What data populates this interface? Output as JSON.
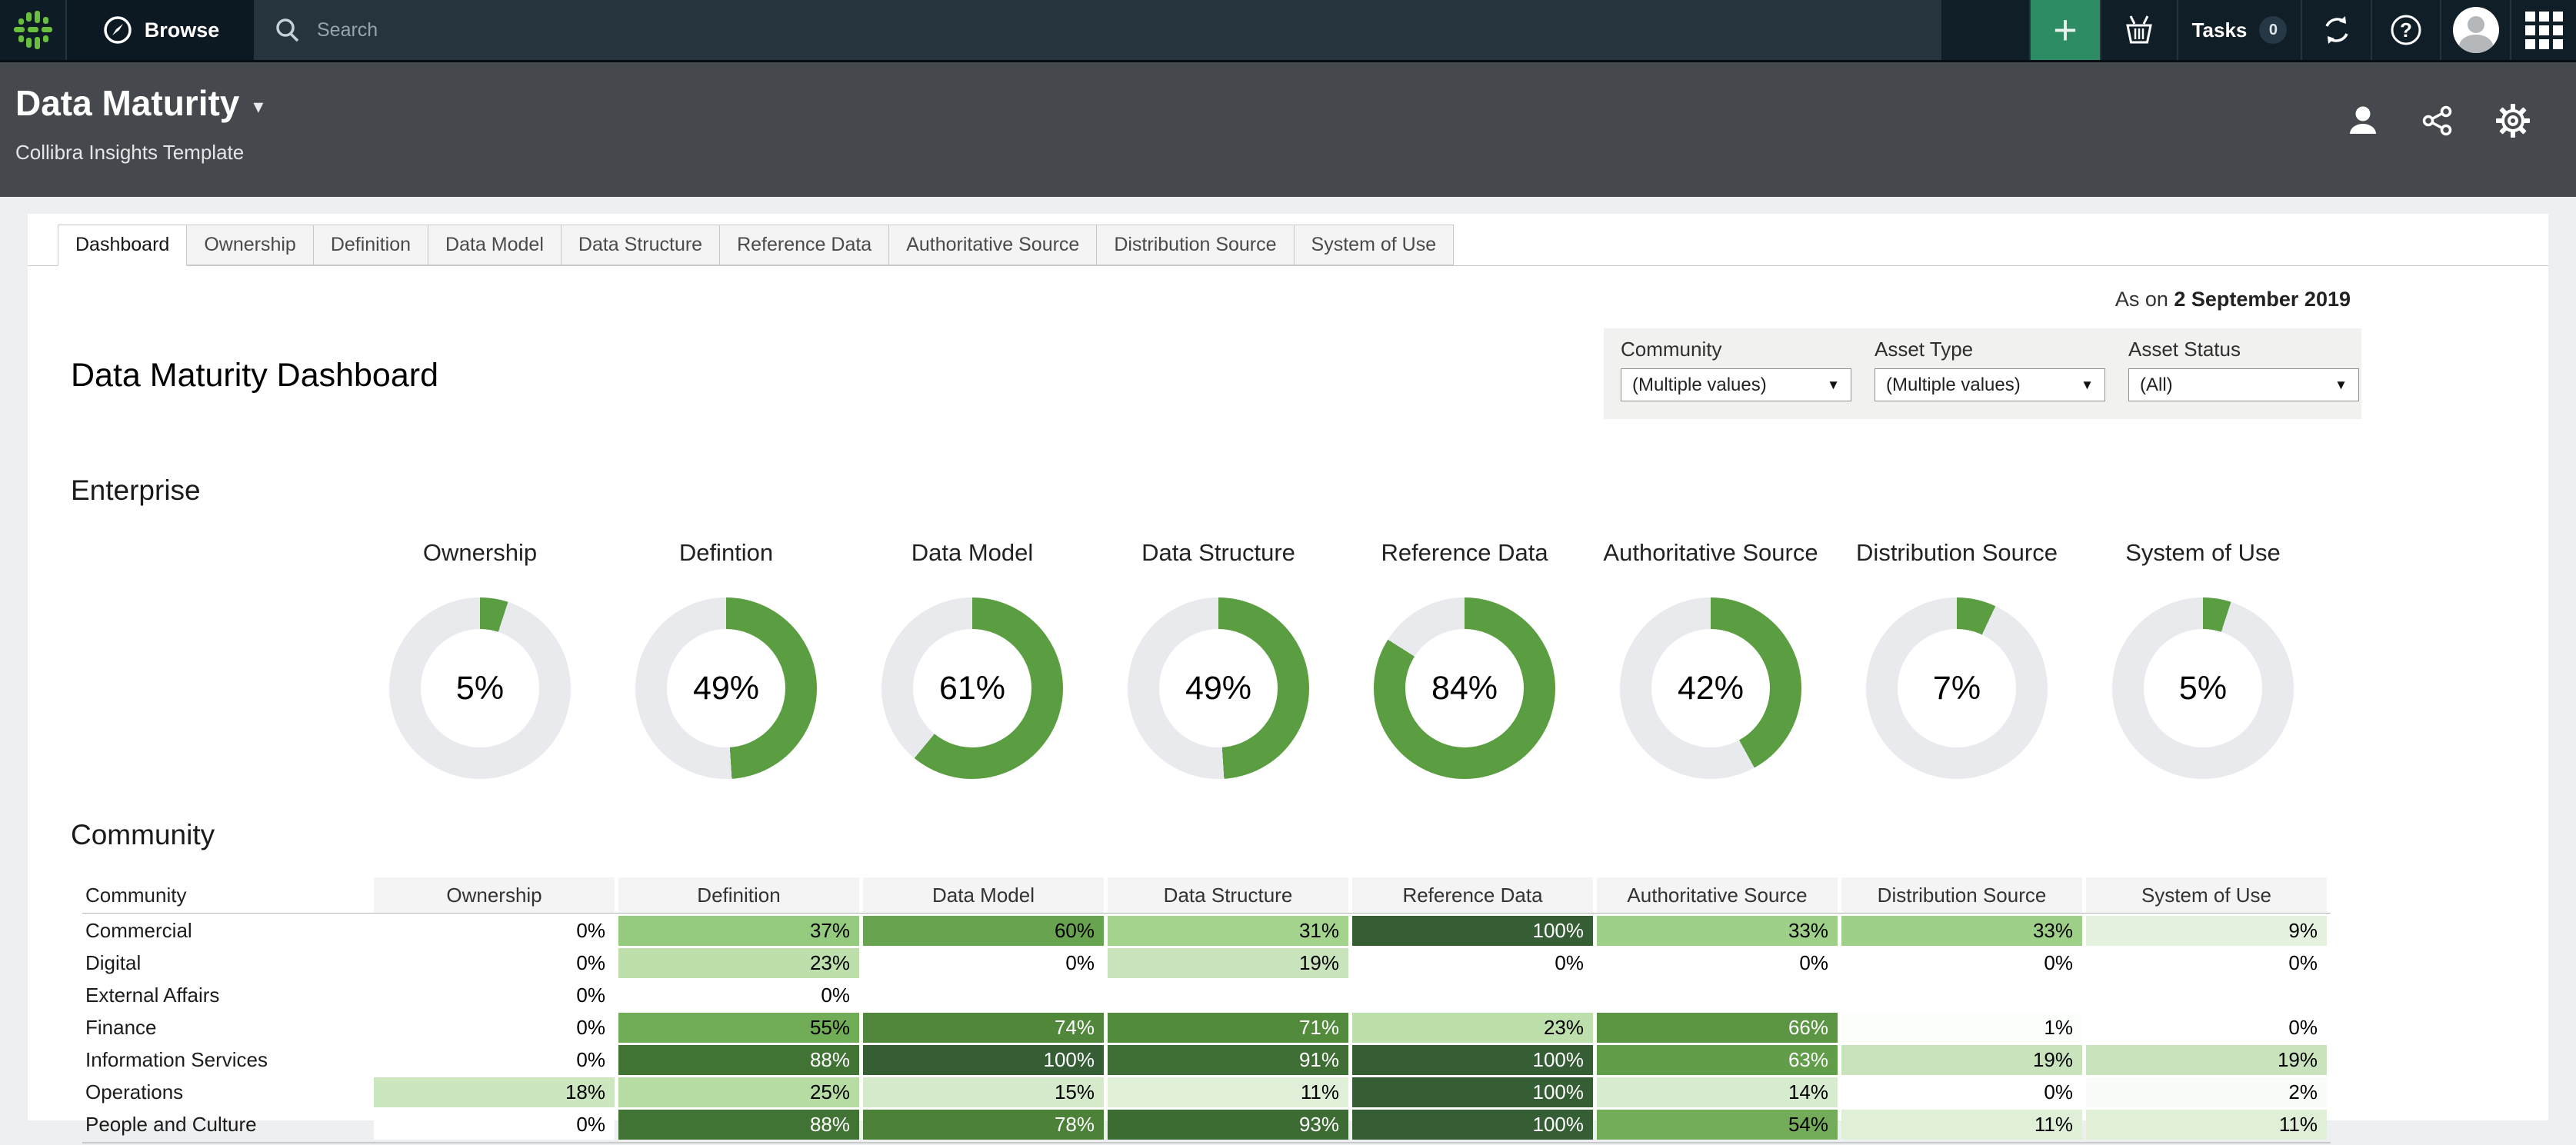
{
  "topnav": {
    "browse_label": "Browse",
    "search_placeholder": "Search",
    "plus_label": "+",
    "tasks_label": "Tasks",
    "tasks_count": "0"
  },
  "header": {
    "title": "Data Maturity",
    "subtitle": "Collibra Insights Template"
  },
  "tabs": [
    {
      "label": "Dashboard",
      "active": true
    },
    {
      "label": "Ownership",
      "active": false
    },
    {
      "label": "Definition",
      "active": false
    },
    {
      "label": "Data Model",
      "active": false
    },
    {
      "label": "Data Structure",
      "active": false
    },
    {
      "label": "Reference Data",
      "active": false
    },
    {
      "label": "Authoritative Source",
      "active": false
    },
    {
      "label": "Distribution Source",
      "active": false
    },
    {
      "label": "System of Use",
      "active": false
    }
  ],
  "as_on": {
    "prefix": "As on ",
    "date": "2 September 2019"
  },
  "filters": [
    {
      "label": "Community",
      "value": "(Multiple values)"
    },
    {
      "label": "Asset Type",
      "value": "(Multiple values)"
    },
    {
      "label": "Asset Status",
      "value": "(All)"
    }
  ],
  "page_title": "Data Maturity Dashboard",
  "enterprise": {
    "heading": "Enterprise",
    "donuts": [
      {
        "label": "Ownership",
        "value": 5
      },
      {
        "label": "Defintion",
        "value": 49
      },
      {
        "label": "Data Model",
        "value": 61
      },
      {
        "label": "Data Structure",
        "value": 49
      },
      {
        "label": "Reference Data",
        "value": 84
      },
      {
        "label": "Authoritative Source",
        "value": 42
      },
      {
        "label": "Distribution Source",
        "value": 7
      },
      {
        "label": "System of Use",
        "value": 5
      }
    ]
  },
  "community": {
    "heading": "Community",
    "columns": [
      "Community",
      "Ownership",
      "Definition",
      "Data Model",
      "Data Structure",
      "Reference Data",
      "Authoritative Source",
      "Distribution Source",
      "System of Use"
    ],
    "rows": [
      {
        "name": "Commercial",
        "values": [
          0,
          37,
          60,
          31,
          100,
          33,
          33,
          9
        ]
      },
      {
        "name": "Digital",
        "values": [
          0,
          23,
          0,
          19,
          0,
          0,
          0,
          0
        ]
      },
      {
        "name": "External Affairs",
        "values": [
          0,
          0,
          null,
          null,
          null,
          null,
          null,
          null
        ]
      },
      {
        "name": "Finance",
        "values": [
          0,
          55,
          74,
          71,
          23,
          66,
          1,
          0
        ]
      },
      {
        "name": "Information Services",
        "values": [
          0,
          88,
          100,
          91,
          100,
          63,
          19,
          19
        ]
      },
      {
        "name": "Operations",
        "values": [
          18,
          25,
          15,
          11,
          100,
          14,
          0,
          2
        ]
      },
      {
        "name": "People and Culture",
        "values": [
          0,
          88,
          78,
          93,
          100,
          54,
          11,
          11
        ]
      }
    ]
  },
  "colors": {
    "donut_green": "#5b9e41",
    "donut_track": "#e8eaed",
    "nav_plus_green": "#2e8c65",
    "logo_green": "#6abf3f",
    "green_ramp": [
      [
        0,
        "#ffffff"
      ],
      [
        10,
        "#e3f1dc"
      ],
      [
        20,
        "#c6e3b8"
      ],
      [
        30,
        "#a5d48f"
      ],
      [
        40,
        "#8cc577"
      ],
      [
        50,
        "#7ab35f"
      ],
      [
        60,
        "#68a44f"
      ],
      [
        70,
        "#548c3e"
      ],
      [
        80,
        "#497f36"
      ],
      [
        90,
        "#3f7033"
      ],
      [
        100,
        "#355e35"
      ]
    ],
    "white_text_threshold": 60
  },
  "chart_data": [
    {
      "type": "pie",
      "subtype": "donut-kpis",
      "title": "Enterprise",
      "categories": [
        "Ownership",
        "Defintion",
        "Data Model",
        "Data Structure",
        "Reference Data",
        "Authoritative Source",
        "Distribution Source",
        "System of Use"
      ],
      "values": [
        5,
        49,
        61,
        49,
        84,
        42,
        7,
        5
      ],
      "unit": "%"
    },
    {
      "type": "heatmap",
      "title": "Community",
      "x_categories": [
        "Ownership",
        "Definition",
        "Data Model",
        "Data Structure",
        "Reference Data",
        "Authoritative Source",
        "Distribution Source",
        "System of Use"
      ],
      "y_categories": [
        "Commercial",
        "Digital",
        "External Affairs",
        "Finance",
        "Information Services",
        "Operations",
        "People and Culture"
      ],
      "values": [
        [
          0,
          37,
          60,
          31,
          100,
          33,
          33,
          9
        ],
        [
          0,
          23,
          0,
          19,
          0,
          0,
          0,
          0
        ],
        [
          0,
          0,
          null,
          null,
          null,
          null,
          null,
          null
        ],
        [
          0,
          55,
          74,
          71,
          23,
          66,
          1,
          0
        ],
        [
          0,
          88,
          100,
          91,
          100,
          63,
          19,
          19
        ],
        [
          18,
          25,
          15,
          11,
          100,
          14,
          0,
          2
        ],
        [
          0,
          88,
          78,
          93,
          100,
          54,
          11,
          11
        ]
      ],
      "unit": "%"
    }
  ]
}
